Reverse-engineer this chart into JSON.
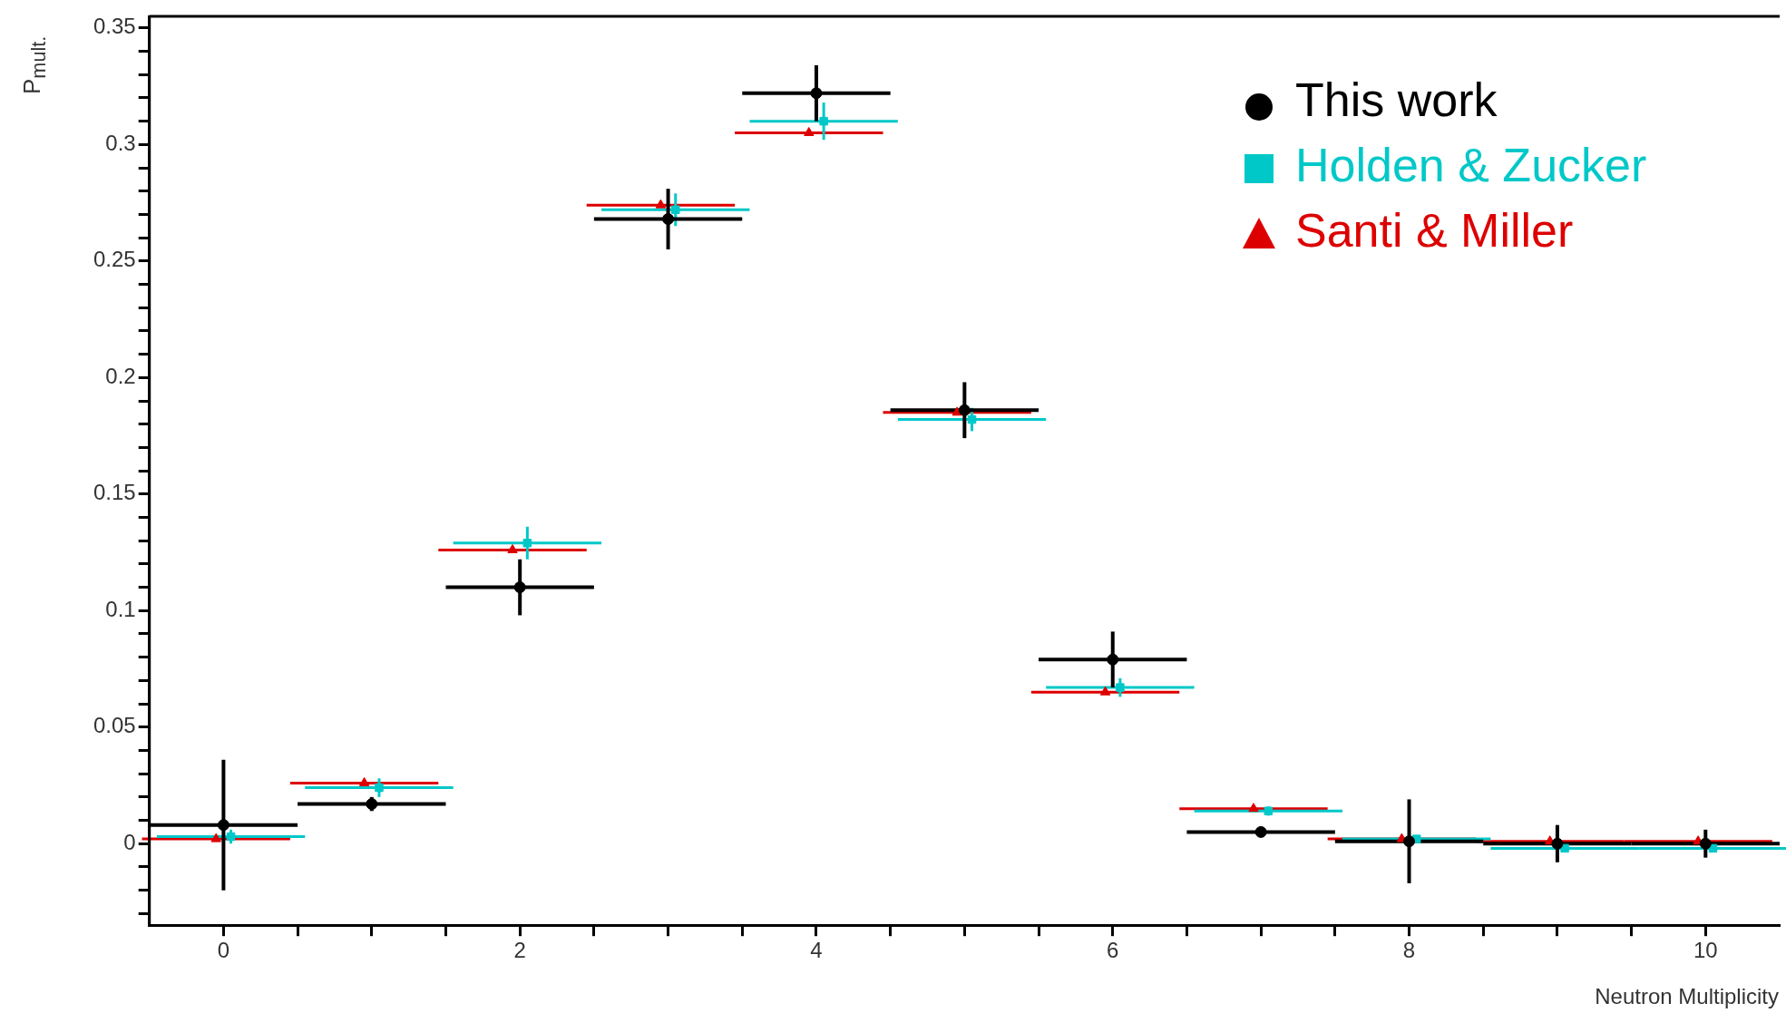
{
  "chart_data": {
    "type": "scatter",
    "xlabel": "Neutron Multiplicity",
    "ylabel": "P$_{mult.}$",
    "xlim": [
      -0.5,
      10.5
    ],
    "xticks": [
      0,
      {
        "value": 0.5,
        "label": null
      },
      {
        "value": 1,
        "label": null
      },
      {
        "value": 1.5,
        "label": null
      },
      2,
      {
        "value": 2.5,
        "label": null
      },
      {
        "value": 3,
        "label": null
      },
      {
        "value": 3.5,
        "label": null
      },
      4,
      {
        "value": 4.5,
        "label": null
      },
      {
        "value": 5,
        "label": null
      },
      {
        "value": 5.5,
        "label": null
      },
      6,
      {
        "value": 6.5,
        "label": null
      },
      {
        "value": 7,
        "label": null
      },
      {
        "value": 7.5,
        "label": null
      },
      8,
      {
        "value": 8.5,
        "label": null
      },
      {
        "value": 9,
        "label": null
      },
      {
        "value": 9.5,
        "label": null
      },
      10
    ],
    "ylim": [
      -0.035,
      0.355
    ],
    "yticks": [
      {
        "value": -0.03,
        "label": null
      },
      {
        "value": -0.02,
        "label": null
      },
      {
        "value": -0.01,
        "label": null
      },
      0,
      {
        "value": 0.01,
        "label": null
      },
      {
        "value": 0.02,
        "label": null
      },
      {
        "value": 0.03,
        "label": null
      },
      {
        "value": 0.04,
        "label": null
      },
      0.05,
      {
        "value": 0.06,
        "label": null
      },
      {
        "value": 0.07,
        "label": null
      },
      {
        "value": 0.08,
        "label": null
      },
      {
        "value": 0.09,
        "label": null
      },
      0.1,
      {
        "value": 0.11,
        "label": null
      },
      {
        "value": 0.12,
        "label": null
      },
      {
        "value": 0.13,
        "label": null
      },
      {
        "value": 0.14,
        "label": null
      },
      0.15,
      {
        "value": 0.16,
        "label": null
      },
      {
        "value": 0.17,
        "label": null
      },
      {
        "value": 0.18,
        "label": null
      },
      {
        "value": 0.19,
        "label": null
      },
      0.2,
      {
        "value": 0.21,
        "label": null
      },
      {
        "value": 0.22,
        "label": null
      },
      {
        "value": 0.23,
        "label": null
      },
      {
        "value": 0.24,
        "label": null
      },
      0.25,
      {
        "value": 0.26,
        "label": null
      },
      {
        "value": 0.27,
        "label": null
      },
      {
        "value": 0.28,
        "label": null
      },
      {
        "value": 0.29,
        "label": null
      },
      0.3,
      {
        "value": 0.31,
        "label": null
      },
      {
        "value": 0.32,
        "label": null
      },
      {
        "value": 0.33,
        "label": null
      },
      {
        "value": 0.34,
        "label": null
      },
      0.35
    ],
    "grid": false,
    "legend": "top right",
    "series": [
      {
        "name": "This work",
        "color": "#000000",
        "marker": "circle",
        "x": [
          0,
          1,
          2,
          3,
          4,
          5,
          6,
          7,
          8,
          9,
          10
        ],
        "values": [
          0.008,
          0.017,
          0.11,
          0.268,
          0.322,
          0.186,
          0.079,
          0.005,
          0.001,
          0.0,
          0.0
        ],
        "errors": [
          0.028,
          0.003,
          0.012,
          0.013,
          0.012,
          0.012,
          0.012,
          0.002,
          0.018,
          0.008,
          0.006
        ],
        "xerrors": [
          0.5,
          0.5,
          0.5,
          0.5,
          0.5,
          0.5,
          0.5,
          0.5,
          0.5,
          0.5,
          0.5
        ]
      },
      {
        "name": "Holden & Zucker",
        "color": "#00c8c8",
        "marker": "square",
        "x": [
          0.05,
          1.05,
          2.05,
          3.05,
          4.05,
          5.05,
          6.05,
          7.05,
          8.05,
          9.05,
          10.05
        ],
        "values": [
          0.003,
          0.024,
          0.129,
          0.272,
          0.31,
          0.182,
          0.067,
          0.014,
          0.002,
          -0.002,
          -0.002
        ],
        "errors": [
          0.003,
          0.004,
          0.007,
          0.007,
          0.008,
          0.005,
          0.004,
          0.002,
          0.001,
          0.001,
          0.001
        ],
        "xerrors": [
          0.5,
          0.5,
          0.5,
          0.5,
          0.5,
          0.5,
          0.5,
          0.5,
          0.5,
          0.5,
          0.5
        ]
      },
      {
        "name": "Santi & Miller",
        "color": "#dd0000",
        "marker": "triangle",
        "x": [
          -0.05,
          0.95,
          1.95,
          2.95,
          3.95,
          4.95,
          5.95,
          6.95,
          7.95,
          8.95,
          9.95
        ],
        "values": [
          0.002,
          0.026,
          0.126,
          0.274,
          0.305,
          0.185,
          0.065,
          0.015,
          0.002,
          0.001,
          0.001
        ],
        "xerrors": [
          0.5,
          0.5,
          0.5,
          0.5,
          0.5,
          0.5,
          0.5,
          0.5,
          0.5,
          0.5,
          0.5
        ]
      }
    ]
  }
}
